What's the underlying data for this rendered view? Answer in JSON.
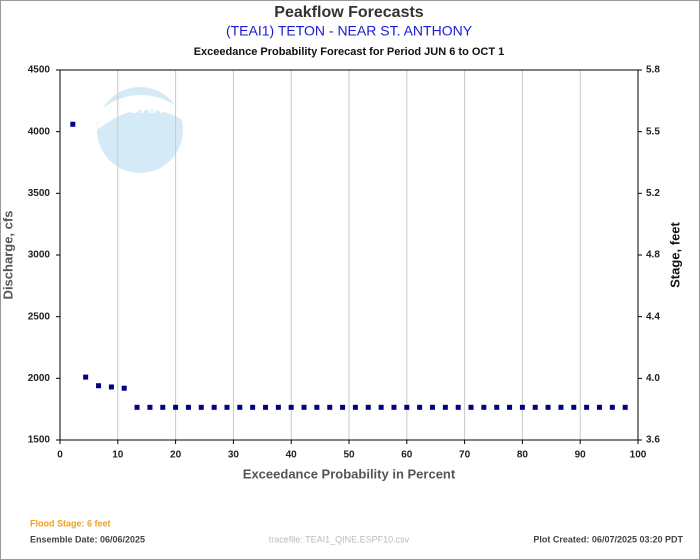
{
  "chart_data": {
    "type": "scatter",
    "title": "Peakflow Forecasts",
    "subtitle": "(TEAI1) TETON - NEAR ST. ANTHONY",
    "period_label": "Exceedance Probability Forecast for Period JUN 6 to OCT 1",
    "xlabel": "Exceedance Probability in Percent",
    "ylabel": "Discharge, cfs",
    "y2label": "Stage, feet",
    "logo_text": "NOAA",
    "footer": {
      "flood_stage": "Flood Stage: 6 feet",
      "ensemble_date": "Ensemble Date: 06/06/2025",
      "tracefile": "tracefile: TEAI1_QINE.ESPF10.csv",
      "plot_created": "Plot Created: 06/07/2025 03:20 PDT"
    },
    "xlim": [
      0,
      100
    ],
    "xticks": [
      0,
      10,
      20,
      30,
      40,
      50,
      60,
      70,
      80,
      90,
      100
    ],
    "ylim": [
      1500,
      4500
    ],
    "yticks": [
      1500,
      2000,
      2500,
      3000,
      3500,
      4000,
      4500
    ],
    "y2ticks": [
      3.6,
      {
        "value": 4,
        "label": "4.0"
      },
      4.4,
      4.8,
      5.2,
      5.5,
      5.8
    ],
    "grid": "x",
    "series": [
      {
        "name": "Discharge",
        "color": "#000080",
        "x": [
          2.22,
          4.44,
          6.67,
          8.89,
          11.11,
          13.33,
          15.56,
          17.78,
          20,
          22.22,
          24.44,
          26.67,
          28.89,
          31.11,
          33.33,
          35.56,
          37.78,
          40,
          42.22,
          44.44,
          46.67,
          48.89,
          51.11,
          53.33,
          55.56,
          57.78,
          60,
          62.22,
          64.44,
          66.67,
          68.89,
          71.11,
          73.33,
          75.56,
          77.78,
          80,
          82.22,
          84.44,
          86.67,
          88.89,
          91.11,
          93.33,
          95.56,
          97.78
        ],
        "values": [
          4060,
          2010,
          1940,
          1930,
          1920,
          1765,
          1765,
          1765,
          1765,
          1765,
          1765,
          1765,
          1765,
          1765,
          1765,
          1765,
          1765,
          1765,
          1765,
          1765,
          1765,
          1765,
          1765,
          1765,
          1765,
          1765,
          1765,
          1765,
          1765,
          1765,
          1765,
          1765,
          1765,
          1765,
          1765,
          1765,
          1765,
          1765,
          1765,
          1765,
          1765,
          1765,
          1765,
          1765
        ]
      }
    ]
  }
}
